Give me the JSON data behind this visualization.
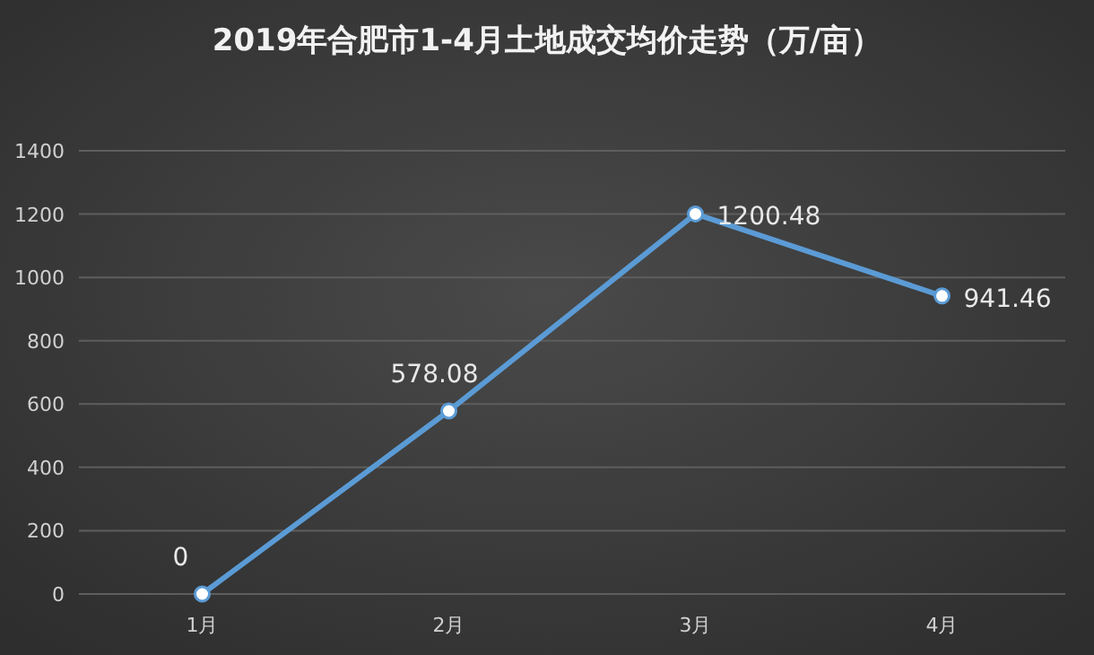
{
  "chart_data": {
    "type": "line",
    "title": "2019年合肥市1-4月土地成交均价走势（万/亩）",
    "categories": [
      "1月",
      "2月",
      "3月",
      "4月"
    ],
    "values": [
      0,
      578.08,
      1200.48,
      941.46
    ],
    "color": "#5b9bd5",
    "marker": "circle",
    "line_style": "solid",
    "data_labels": true,
    "ylim": [
      0,
      1400
    ],
    "yticks": [
      0,
      200,
      400,
      600,
      800,
      1000,
      1200,
      1400
    ],
    "grid": "y"
  }
}
